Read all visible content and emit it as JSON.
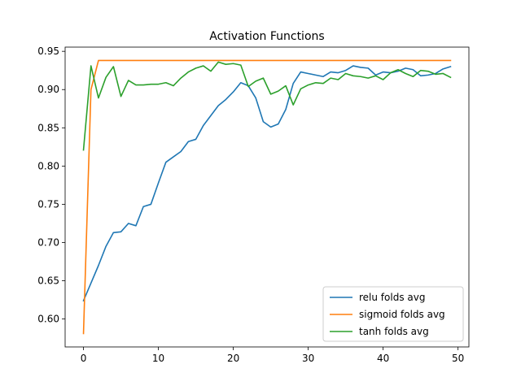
{
  "chart_data": {
    "type": "line",
    "title": "Activation Functions",
    "xlabel": "",
    "ylabel": "",
    "xlim": [
      -2.45,
      51.45
    ],
    "ylim": [
      0.5635,
      0.9555
    ],
    "x_ticks": [
      0,
      10,
      20,
      30,
      40,
      50
    ],
    "y_ticks": [
      0.6,
      0.65,
      0.7,
      0.75,
      0.8,
      0.85,
      0.9,
      0.95
    ],
    "y_tick_labels": [
      "0.60",
      "0.65",
      "0.70",
      "0.75",
      "0.80",
      "0.85",
      "0.90",
      "0.95"
    ],
    "grid": false,
    "legend_position": "lower-right",
    "x": [
      0,
      1,
      2,
      3,
      4,
      5,
      6,
      7,
      8,
      9,
      10,
      11,
      12,
      13,
      14,
      15,
      16,
      17,
      18,
      19,
      20,
      21,
      22,
      23,
      24,
      25,
      26,
      27,
      28,
      29,
      30,
      31,
      32,
      33,
      34,
      35,
      36,
      37,
      38,
      39,
      40,
      41,
      42,
      43,
      44,
      45,
      46,
      47,
      48,
      49
    ],
    "series": [
      {
        "name": "relu folds avg",
        "color": "#1f77b4",
        "values": [
          0.624,
          0.647,
          0.67,
          0.695,
          0.713,
          0.714,
          0.725,
          0.722,
          0.747,
          0.75,
          0.778,
          0.805,
          0.812,
          0.819,
          0.832,
          0.835,
          0.853,
          0.866,
          0.879,
          0.887,
          0.897,
          0.909,
          0.905,
          0.889,
          0.858,
          0.851,
          0.855,
          0.874,
          0.908,
          0.923,
          0.921,
          0.919,
          0.917,
          0.923,
          0.922,
          0.925,
          0.931,
          0.929,
          0.928,
          0.919,
          0.923,
          0.922,
          0.924,
          0.928,
          0.926,
          0.918,
          0.919,
          0.921,
          0.927,
          0.93
        ]
      },
      {
        "name": "sigmoid folds avg",
        "color": "#ff7f0e",
        "values": [
          0.581,
          0.9,
          0.938,
          0.938,
          0.938,
          0.938,
          0.938,
          0.938,
          0.938,
          0.938,
          0.938,
          0.938,
          0.938,
          0.938,
          0.938,
          0.938,
          0.938,
          0.938,
          0.938,
          0.938,
          0.938,
          0.938,
          0.938,
          0.938,
          0.938,
          0.938,
          0.938,
          0.938,
          0.938,
          0.938,
          0.938,
          0.938,
          0.938,
          0.938,
          0.938,
          0.938,
          0.938,
          0.938,
          0.938,
          0.938,
          0.938,
          0.938,
          0.938,
          0.938,
          0.938,
          0.938,
          0.938,
          0.938,
          0.938,
          0.938
        ]
      },
      {
        "name": "tanh folds avg",
        "color": "#2ca02c",
        "values": [
          0.821,
          0.931,
          0.889,
          0.916,
          0.93,
          0.891,
          0.912,
          0.906,
          0.906,
          0.907,
          0.907,
          0.909,
          0.905,
          0.915,
          0.923,
          0.928,
          0.931,
          0.924,
          0.936,
          0.933,
          0.934,
          0.932,
          0.904,
          0.911,
          0.915,
          0.894,
          0.898,
          0.905,
          0.88,
          0.901,
          0.906,
          0.909,
          0.908,
          0.915,
          0.913,
          0.921,
          0.918,
          0.917,
          0.915,
          0.918,
          0.913,
          0.922,
          0.926,
          0.921,
          0.917,
          0.925,
          0.924,
          0.92,
          0.921,
          0.916
        ]
      }
    ]
  }
}
